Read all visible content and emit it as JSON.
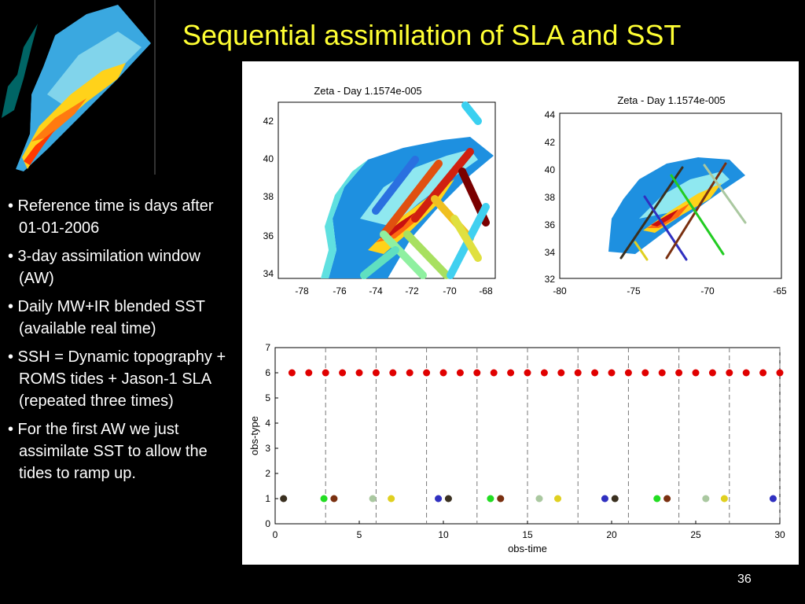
{
  "slide": {
    "title": "Sequential assimilation of SLA and SST",
    "number": "36",
    "bullets": [
      "• Reference time is days after 01-01-2006",
      "• 3-day assimilation window (AW)",
      "• Daily MW+IR blended SST (available real time)",
      "• SSH = Dynamic topography + ROMS tides + Jason-1 SLA (repeated three times)",
      "• For the first AW we just assimilate SST to allow the tides to  ramp up."
    ]
  },
  "maps": [
    {
      "title": "Zeta - Day 1.1574e-005",
      "xticks": [
        "-78",
        "-76",
        "-74",
        "-72",
        "-70",
        "-68"
      ],
      "yticks": [
        "42",
        "40",
        "38",
        "36",
        "34"
      ]
    },
    {
      "title": "Zeta - Day 1.1574e-005",
      "xticks": [
        "-80",
        "-75",
        "-70",
        "-65"
      ],
      "yticks": [
        "44",
        "42",
        "40",
        "38",
        "36",
        "34",
        "32"
      ]
    }
  ],
  "chart_data": {
    "type": "scatter",
    "xlabel": "obs-time",
    "ylabel": "obs-type",
    "xlim": [
      0,
      30
    ],
    "ylim": [
      0,
      7
    ],
    "xticks": [
      0,
      5,
      10,
      15,
      20,
      25,
      30
    ],
    "yticks": [
      0,
      1,
      2,
      3,
      4,
      5,
      6,
      7
    ],
    "window_boundaries": [
      3,
      6,
      9,
      12,
      15,
      18,
      21,
      24,
      27,
      30
    ],
    "sst_points": {
      "y": 6,
      "color": "#e00000",
      "x": [
        1,
        2,
        3,
        4,
        5,
        6,
        7,
        8,
        9,
        10,
        11,
        12,
        13,
        14,
        15,
        16,
        17,
        18,
        19,
        20,
        21,
        22,
        23,
        24,
        25,
        26,
        27,
        28,
        29,
        30
      ]
    },
    "ssh_points": [
      {
        "x": 0.5,
        "y": 1,
        "color": "#3a3020"
      },
      {
        "x": 2.9,
        "y": 1,
        "color": "#22dd22"
      },
      {
        "x": 3.5,
        "y": 1,
        "color": "#7a3010"
      },
      {
        "x": 5.8,
        "y": 1,
        "color": "#aac8a0"
      },
      {
        "x": 6.9,
        "y": 1,
        "color": "#e0d020"
      },
      {
        "x": 9.7,
        "y": 1,
        "color": "#3030c0"
      },
      {
        "x": 10.3,
        "y": 1,
        "color": "#3a3020"
      },
      {
        "x": 12.8,
        "y": 1,
        "color": "#22dd22"
      },
      {
        "x": 13.4,
        "y": 1,
        "color": "#7a3010"
      },
      {
        "x": 15.7,
        "y": 1,
        "color": "#aac8a0"
      },
      {
        "x": 16.8,
        "y": 1,
        "color": "#e0d020"
      },
      {
        "x": 19.6,
        "y": 1,
        "color": "#3030c0"
      },
      {
        "x": 20.2,
        "y": 1,
        "color": "#3a3020"
      },
      {
        "x": 22.7,
        "y": 1,
        "color": "#22dd22"
      },
      {
        "x": 23.3,
        "y": 1,
        "color": "#7a3010"
      },
      {
        "x": 25.6,
        "y": 1,
        "color": "#aac8a0"
      },
      {
        "x": 26.7,
        "y": 1,
        "color": "#e0d020"
      },
      {
        "x": 29.6,
        "y": 1,
        "color": "#3030c0"
      }
    ]
  }
}
